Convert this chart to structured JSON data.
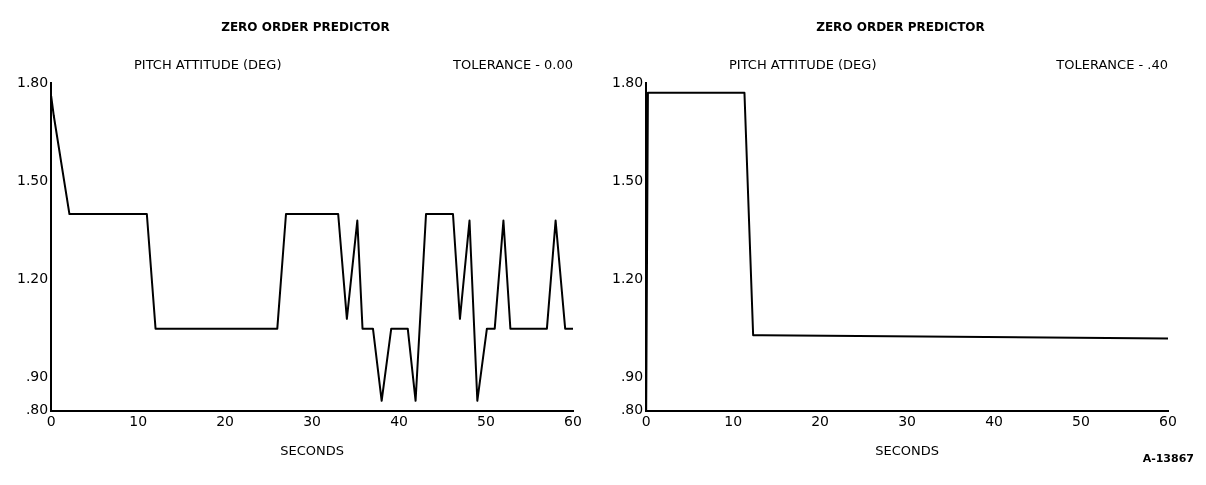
{
  "chart_data": [
    {
      "type": "line",
      "title": "ZERO ORDER PREDICTOR",
      "ylabel": "PITCH ATTITUDE (DEG)",
      "xlabel": "SECONDS",
      "annotations": [
        "TOLERANCE - 0.00"
      ],
      "series": [
        {
          "color": "#000000",
          "x": [
            0,
            0.3,
            2.1,
            11,
            12,
            26,
            27,
            33,
            34,
            35.2,
            35.8,
            37,
            38,
            39.1,
            41,
            41.9,
            43.1,
            46.2,
            47,
            48.1,
            49,
            50.1,
            51,
            52,
            52.8,
            57,
            58,
            59.1,
            60
          ],
          "values": [
            1.76,
            1.7,
            1.4,
            1.4,
            1.05,
            1.05,
            1.4,
            1.4,
            1.08,
            1.38,
            1.05,
            1.05,
            0.83,
            1.05,
            1.05,
            0.83,
            1.4,
            1.4,
            1.08,
            1.38,
            0.83,
            1.05,
            1.05,
            1.38,
            1.05,
            1.05,
            1.38,
            1.05,
            1.05
          ]
        }
      ],
      "xlim": [
        0,
        60
      ],
      "xticks": [
        0,
        10,
        20,
        30,
        40,
        50,
        60
      ],
      "ylim": [
        0.8,
        1.8
      ],
      "yticks": [
        {
          "value": 0.8,
          "label": ".80"
        },
        {
          "value": 0.9,
          "label": ".90"
        },
        {
          "value": 1.2,
          "label": "1.20"
        },
        {
          "value": 1.5,
          "label": "1.50"
        },
        {
          "value": 1.8,
          "label": "1.80"
        }
      ],
      "grid": false,
      "legend": false
    },
    {
      "type": "line",
      "title": "ZERO ORDER PREDICTOR",
      "ylabel": "PITCH ATTITUDE (DEG)",
      "xlabel": "SECONDS",
      "annotations": [
        "TOLERANCE - .40",
        "A-13867"
      ],
      "series": [
        {
          "color": "#000000",
          "x": [
            0,
            0.2,
            11.3,
            12.3,
            60
          ],
          "values": [
            0.8,
            1.77,
            1.77,
            1.03,
            1.02
          ]
        }
      ],
      "xlim": [
        0,
        60
      ],
      "xticks": [
        0,
        10,
        20,
        30,
        40,
        50,
        60
      ],
      "ylim": [
        0.8,
        1.8
      ],
      "yticks": [
        {
          "value": 0.8,
          "label": ".80"
        },
        {
          "value": 0.9,
          "label": ".90"
        },
        {
          "value": 1.2,
          "label": "1.20"
        },
        {
          "value": 1.5,
          "label": "1.50"
        },
        {
          "value": 1.8,
          "label": "1.80"
        }
      ],
      "grid": false,
      "legend": false
    }
  ]
}
